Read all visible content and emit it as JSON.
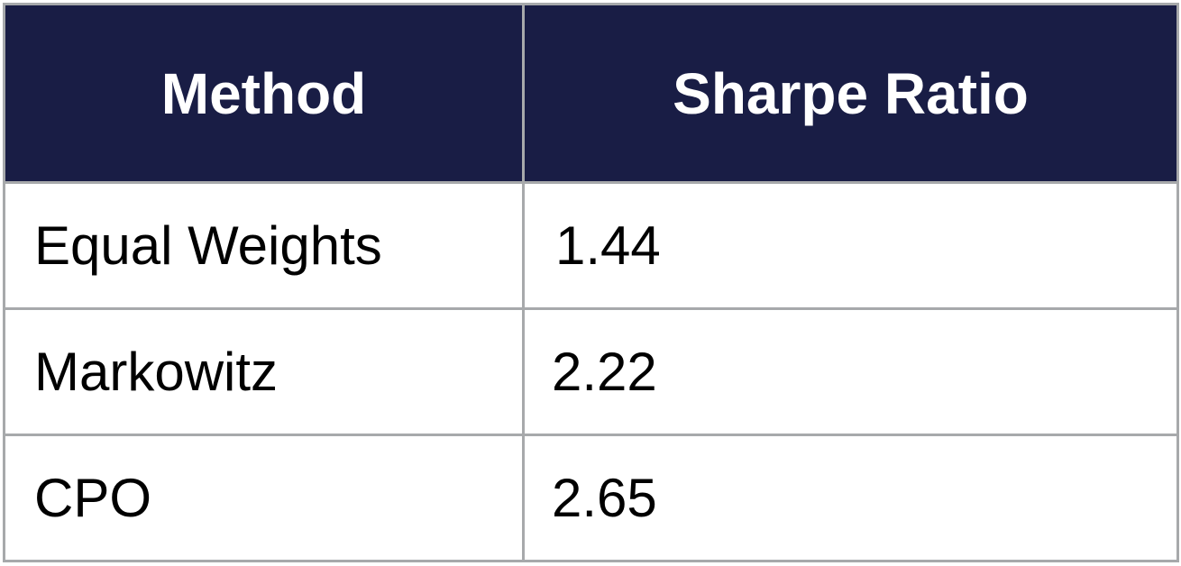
{
  "chart_data": {
    "type": "table",
    "columns": [
      "Method",
      "Sharpe Ratio"
    ],
    "rows": [
      {
        "method": "Equal Weights",
        "sharpe_ratio": "1.44"
      },
      {
        "method": "Markowitz",
        "sharpe_ratio": "2.22"
      },
      {
        "method": "CPO",
        "sharpe_ratio": "2.65"
      }
    ],
    "colors": {
      "header_background": "#191d45",
      "header_text": "#ffffff",
      "grid_lines": "#a7a9ab",
      "body_background": "#ffffff",
      "body_text": "#000000"
    }
  }
}
